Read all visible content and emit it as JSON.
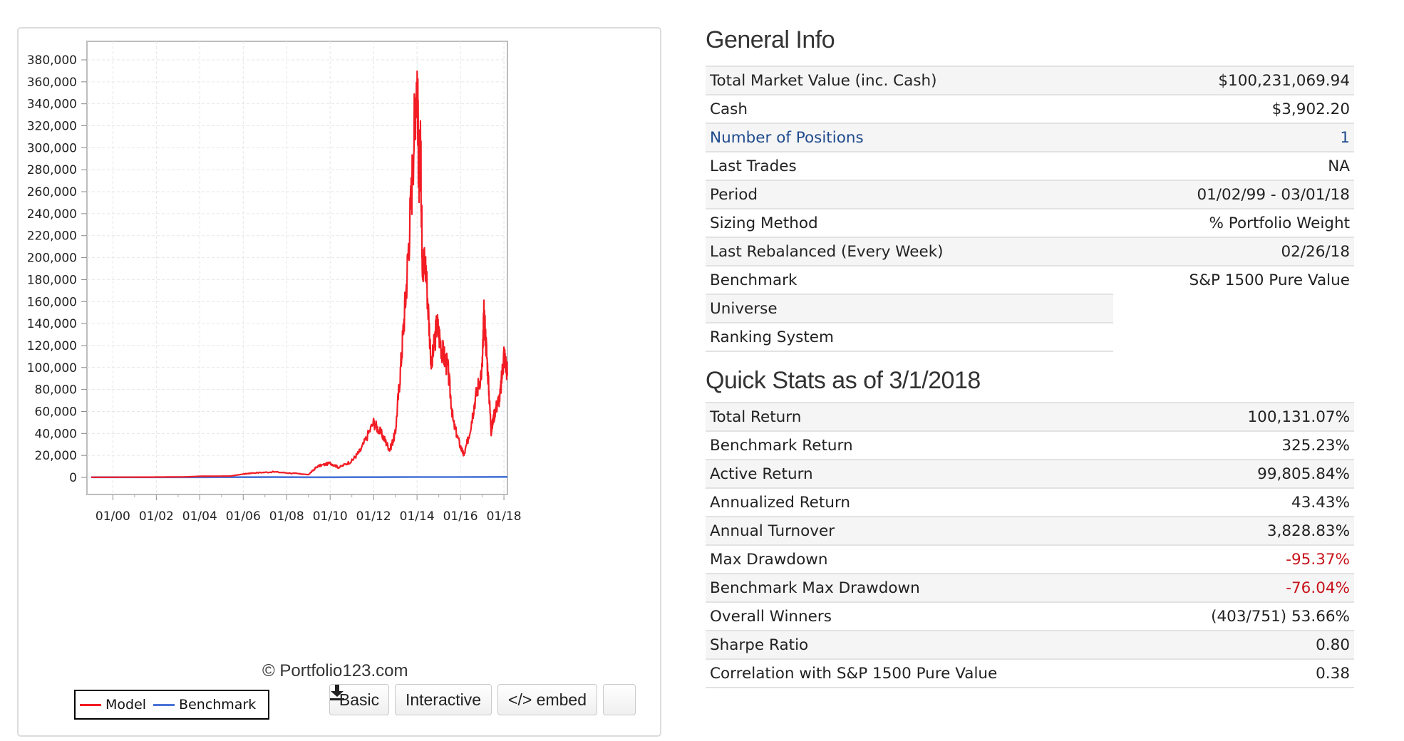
{
  "chart": {
    "y_ticks": [
      "380,000",
      "360,000",
      "340,000",
      "320,000",
      "300,000",
      "280,000",
      "260,000",
      "240,000",
      "220,000",
      "200,000",
      "180,000",
      "160,000",
      "140,000",
      "120,000",
      "100,000",
      "80,000",
      "60,000",
      "40,000",
      "20,000",
      "0"
    ],
    "x_ticks": [
      "01/00",
      "01/02",
      "01/04",
      "01/06",
      "01/08",
      "01/10",
      "01/12",
      "01/14",
      "01/16",
      "01/18"
    ],
    "copyright": "© Portfolio123.com",
    "legend": [
      {
        "name": "Model",
        "color": "#f21c24"
      },
      {
        "name": "Benchmark",
        "color": "#4a74d8"
      }
    ]
  },
  "chart_data": {
    "type": "line",
    "title": "",
    "xlabel": "",
    "ylabel": "",
    "x_range": [
      "1999-01-02",
      "2018-03-01"
    ],
    "ylim": [
      0,
      380000
    ],
    "grid": true,
    "legend_position": "bottom-left",
    "series": [
      {
        "name": "Model",
        "color": "#f21c24",
        "points": [
          [
            "1999-01-02",
            100
          ],
          [
            "2000-01-01",
            150
          ],
          [
            "2002-01-01",
            300
          ],
          [
            "2003-06-01",
            500
          ],
          [
            "2004-01-01",
            1000
          ],
          [
            "2005-06-01",
            1200
          ],
          [
            "2006-01-01",
            3000
          ],
          [
            "2006-06-01",
            4000
          ],
          [
            "2007-06-01",
            5000
          ],
          [
            "2008-06-01",
            3500
          ],
          [
            "2009-01-01",
            2500
          ],
          [
            "2009-06-01",
            10000
          ],
          [
            "2010-01-01",
            13000
          ],
          [
            "2010-06-01",
            9000
          ],
          [
            "2011-01-01",
            15000
          ],
          [
            "2011-06-01",
            25000
          ],
          [
            "2012-01-01",
            50000
          ],
          [
            "2012-06-01",
            38000
          ],
          [
            "2012-10-01",
            25000
          ],
          [
            "2013-01-01",
            40000
          ],
          [
            "2013-04-01",
            100000
          ],
          [
            "2013-07-01",
            170000
          ],
          [
            "2013-10-01",
            260000
          ],
          [
            "2014-01-01",
            378000
          ],
          [
            "2014-02-01",
            270000
          ],
          [
            "2014-03-01",
            300000
          ],
          [
            "2014-04-01",
            200000
          ],
          [
            "2014-06-01",
            190000
          ],
          [
            "2014-09-01",
            100000
          ],
          [
            "2014-12-01",
            140000
          ],
          [
            "2015-03-01",
            115000
          ],
          [
            "2015-06-01",
            100000
          ],
          [
            "2015-09-01",
            50000
          ],
          [
            "2016-01-01",
            28000
          ],
          [
            "2016-03-01",
            20000
          ],
          [
            "2016-06-01",
            40000
          ],
          [
            "2016-09-01",
            70000
          ],
          [
            "2017-01-01",
            100000
          ],
          [
            "2017-02-01",
            150000
          ],
          [
            "2017-04-01",
            100000
          ],
          [
            "2017-06-01",
            42000
          ],
          [
            "2017-08-01",
            60000
          ],
          [
            "2017-11-01",
            75000
          ],
          [
            "2018-01-01",
            113000
          ],
          [
            "2018-03-01",
            95000
          ]
        ]
      },
      {
        "name": "Benchmark",
        "color": "#4a74d8",
        "points": [
          [
            "1999-01-02",
            100
          ],
          [
            "2003-01-01",
            120
          ],
          [
            "2007-06-01",
            250
          ],
          [
            "2009-03-01",
            100
          ],
          [
            "2013-01-01",
            250
          ],
          [
            "2018-03-01",
            425
          ]
        ]
      }
    ]
  },
  "toolbar": {
    "basic_label": "Basic",
    "interactive_label": "Interactive",
    "embed_label": "</> embed",
    "download_icon": "download-icon"
  },
  "general_info": {
    "title": "General Info",
    "rows": [
      {
        "label": "Total Market Value (inc. Cash)",
        "value": "$100,231,069.94"
      },
      {
        "label": "Cash",
        "value": "$3,902.20"
      },
      {
        "label": "Number of Positions",
        "value": "1",
        "link": true
      },
      {
        "label": "Last Trades",
        "value": "NA"
      },
      {
        "label": "Period",
        "value": "01/02/99 - 03/01/18"
      },
      {
        "label": "Sizing Method",
        "value": "% Portfolio Weight"
      },
      {
        "label": "Last Rebalanced (Every Week)",
        "value": "02/26/18"
      },
      {
        "label": "Benchmark",
        "value": "S&P 1500 Pure Value"
      },
      {
        "label": "Universe",
        "value": ""
      },
      {
        "label": "Ranking System",
        "value": ""
      }
    ]
  },
  "quick_stats": {
    "title": "Quick Stats as of 3/1/2018",
    "rows": [
      {
        "label": "Total Return",
        "value": "100,131.07%"
      },
      {
        "label": "Benchmark Return",
        "value": "325.23%"
      },
      {
        "label": "Active Return",
        "value": "99,805.84%"
      },
      {
        "label": "Annualized Return",
        "value": "43.43%"
      },
      {
        "label": "Annual Turnover",
        "value": "3,828.83%"
      },
      {
        "label": "Max Drawdown",
        "value": "-95.37%",
        "negative": true
      },
      {
        "label": "Benchmark Max Drawdown",
        "value": "-76.04%",
        "negative": true
      },
      {
        "label": "Overall Winners",
        "value": "(403/751) 53.66%"
      },
      {
        "label": "Sharpe Ratio",
        "value": "0.80"
      },
      {
        "label": "Correlation with S&P 1500 Pure Value",
        "value": "0.38"
      }
    ]
  },
  "colors": {
    "negative": "#c8141c",
    "link": "#1f4b8e",
    "model_line": "#f21c24",
    "benchmark_line": "#4a74d8"
  }
}
